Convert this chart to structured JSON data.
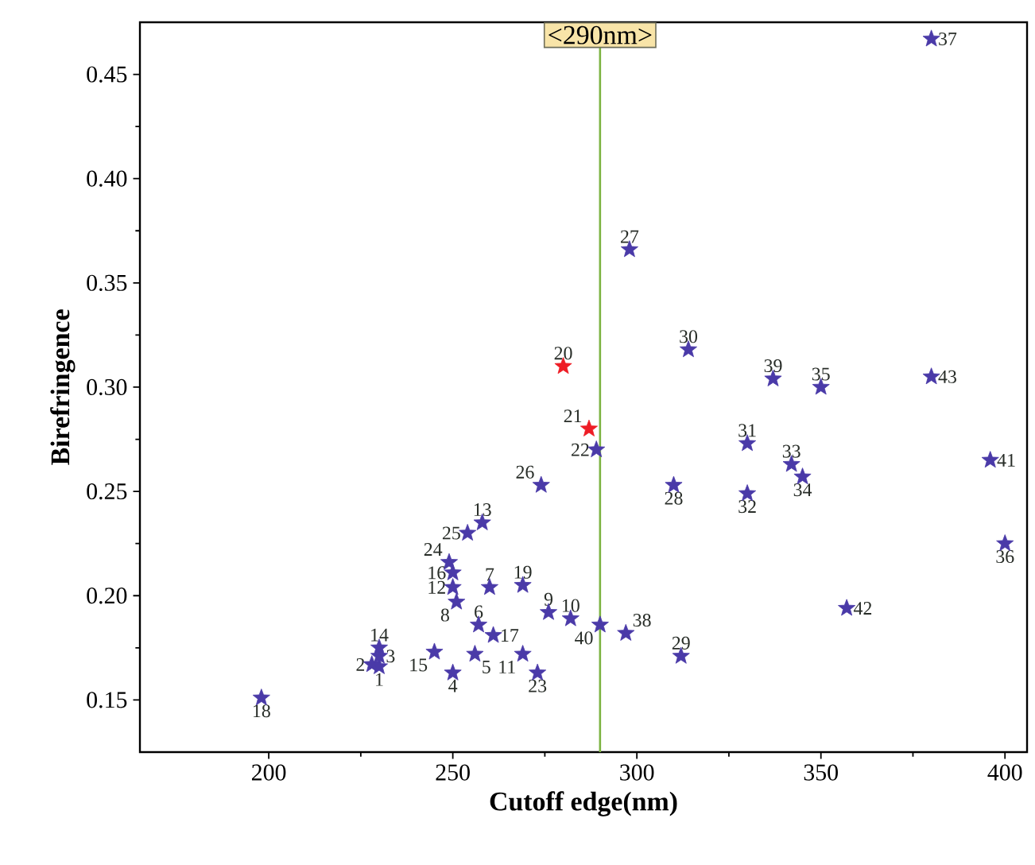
{
  "chart_data": {
    "type": "scatter",
    "xlabel": "Cutoff edge(nm)",
    "ylabel": "Birefringence",
    "xlim": [
      165,
      406
    ],
    "xticks": [
      200,
      250,
      300,
      350,
      400
    ],
    "ylim": [
      0.125,
      0.475
    ],
    "yticks": [
      0.15,
      {
        "value": 0.2,
        "label": "0.20"
      },
      0.25,
      {
        "value": 0.3,
        "label": "0.30"
      },
      0.35,
      {
        "value": 0.4,
        "label": "0.40"
      },
      0.45
    ],
    "marker": "star",
    "series": [
      {
        "color": "#4a3aa8",
        "x": [
          230,
          228,
          230,
          250,
          256,
          257,
          260,
          251,
          276,
          282,
          269,
          250,
          258,
          230,
          245,
          250,
          261,
          198,
          269,
          289,
          273,
          249,
          254,
          274,
          298,
          310,
          312,
          314,
          330,
          330,
          342,
          345,
          350,
          400,
          380,
          297,
          337,
          290,
          396,
          357,
          380
        ],
        "values": [
          0.166,
          0.167,
          0.171,
          0.163,
          0.172,
          0.186,
          0.204,
          0.197,
          0.192,
          0.189,
          0.172,
          0.204,
          0.235,
          0.175,
          0.173,
          0.211,
          0.181,
          0.151,
          0.205,
          0.27,
          0.163,
          0.216,
          0.23,
          0.253,
          0.366,
          0.253,
          0.171,
          0.318,
          0.273,
          0.249,
          0.263,
          0.257,
          0.3,
          0.225,
          0.467,
          0.182,
          0.304,
          0.186,
          0.265,
          0.194,
          0.305
        ]
      },
      {
        "color": "#ee1c25",
        "x": [
          280,
          287
        ],
        "values": [
          0.31,
          0.28
        ]
      }
    ],
    "ref_lines": [
      {
        "axis": "x",
        "value": 290,
        "label": "<290nm>",
        "color": "#7cb342",
        "line_style": "solid"
      }
    ],
    "annotations": [
      {
        "text": "1",
        "x": 230,
        "y": 0.166
      },
      {
        "text": "2",
        "x": 228,
        "y": 0.167
      },
      {
        "text": "3",
        "x": 230,
        "y": 0.171
      },
      {
        "text": "4",
        "x": 250,
        "y": 0.163
      },
      {
        "text": "5",
        "x": 256,
        "y": 0.172
      },
      {
        "text": "6",
        "x": 257,
        "y": 0.186
      },
      {
        "text": "7",
        "x": 260,
        "y": 0.204
      },
      {
        "text": "8",
        "x": 251,
        "y": 0.197
      },
      {
        "text": "9",
        "x": 276,
        "y": 0.192
      },
      {
        "text": "10",
        "x": 282,
        "y": 0.189
      },
      {
        "text": "11",
        "x": 269,
        "y": 0.172
      },
      {
        "text": "12",
        "x": 250,
        "y": 0.204
      },
      {
        "text": "13",
        "x": 258,
        "y": 0.235
      },
      {
        "text": "14",
        "x": 230,
        "y": 0.175
      },
      {
        "text": "15",
        "x": 245,
        "y": 0.173
      },
      {
        "text": "16",
        "x": 250,
        "y": 0.211
      },
      {
        "text": "17",
        "x": 261,
        "y": 0.181
      },
      {
        "text": "18",
        "x": 198,
        "y": 0.151
      },
      {
        "text": "19",
        "x": 269,
        "y": 0.205
      },
      {
        "text": "20",
        "x": 280,
        "y": 0.31
      },
      {
        "text": "21",
        "x": 287,
        "y": 0.28
      },
      {
        "text": "22",
        "x": 289,
        "y": 0.27
      },
      {
        "text": "23",
        "x": 273,
        "y": 0.163
      },
      {
        "text": "24",
        "x": 249,
        "y": 0.216
      },
      {
        "text": "25",
        "x": 254,
        "y": 0.23
      },
      {
        "text": "26",
        "x": 274,
        "y": 0.253
      },
      {
        "text": "27",
        "x": 298,
        "y": 0.366
      },
      {
        "text": "28",
        "x": 310,
        "y": 0.253
      },
      {
        "text": "29",
        "x": 312,
        "y": 0.171
      },
      {
        "text": "30",
        "x": 314,
        "y": 0.318
      },
      {
        "text": "31",
        "x": 330,
        "y": 0.273
      },
      {
        "text": "32",
        "x": 330,
        "y": 0.249
      },
      {
        "text": "33",
        "x": 342,
        "y": 0.263
      },
      {
        "text": "34",
        "x": 345,
        "y": 0.257
      },
      {
        "text": "35",
        "x": 350,
        "y": 0.3
      },
      {
        "text": "36",
        "x": 400,
        "y": 0.225
      },
      {
        "text": "37",
        "x": 380,
        "y": 0.467
      },
      {
        "text": "38",
        "x": 297,
        "y": 0.182
      },
      {
        "text": "39",
        "x": 337,
        "y": 0.304
      },
      {
        "text": "40",
        "x": 290,
        "y": 0.186
      },
      {
        "text": "41",
        "x": 396,
        "y": 0.265
      },
      {
        "text": "42",
        "x": 357,
        "y": 0.194
      },
      {
        "text": "43",
        "x": 380,
        "y": 0.305
      }
    ]
  }
}
